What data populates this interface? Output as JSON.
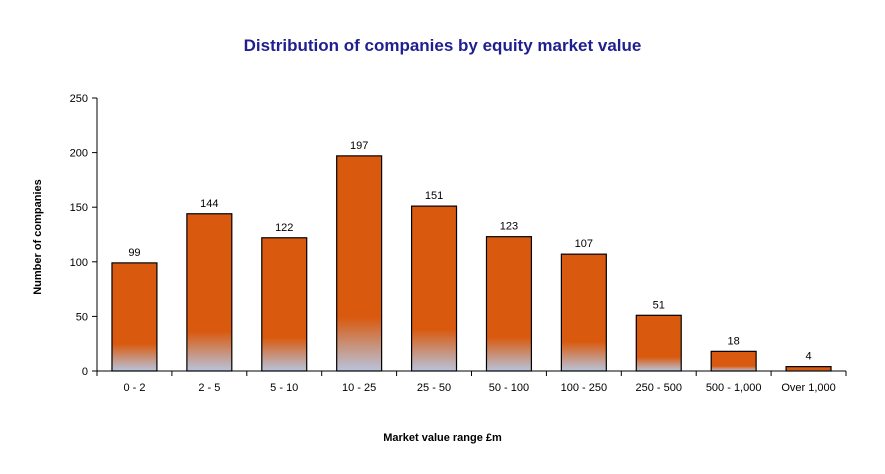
{
  "chart_data": {
    "type": "bar",
    "title": "Distribution of companies by equity market value",
    "xlabel": "Market value range £m",
    "ylabel": "Number of companies",
    "categories": [
      "0 - 2",
      "2 - 5",
      "5 - 10",
      "10 - 25",
      "25 - 50",
      "50 - 100",
      "100 - 250",
      "250 - 500",
      "500 - 1,000",
      "Over 1,000"
    ],
    "values": [
      99,
      144,
      122,
      197,
      151,
      123,
      107,
      51,
      18,
      4
    ],
    "ylim": [
      0,
      250
    ],
    "yticks": [
      0,
      50,
      100,
      150,
      200,
      250
    ],
    "grid": false,
    "legend": "none",
    "colors": {
      "bar_fill": "#d95a0f",
      "bar_base_fade": "#b8c4dc",
      "bar_outline": "#000000",
      "title": "#1f1f8f"
    }
  }
}
